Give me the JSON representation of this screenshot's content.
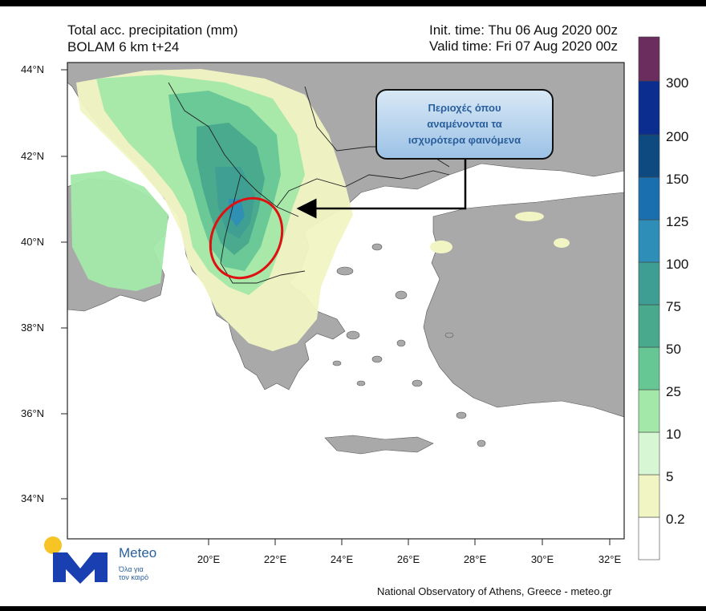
{
  "header": {
    "title_line1": "Total acc. precipitation (mm)",
    "title_line2": "BOLAM 6 km t+24",
    "init_time": "Init. time: Thu 06 Aug 2020 00z",
    "valid_time": "Valid time: Fri 07 Aug 2020 00z"
  },
  "map": {
    "lat_labels": [
      "44°N",
      "42°N",
      "40°N",
      "38°N",
      "36°N",
      "34°N"
    ],
    "lon_labels": [
      "20°E",
      "22°E",
      "24°E",
      "26°E",
      "28°E",
      "30°E",
      "32°E"
    ],
    "sea_color": "#ffffff",
    "land_color": "#a9a9a9",
    "annotation": {
      "text": "Περιοχές όπου\nαναμένονται τα\nισχυρότερα φαινόμενα",
      "ellipse_color": "#e01010",
      "arrow_color": "#000000"
    }
  },
  "legend": {
    "levels": [
      "0.2",
      "5",
      "10",
      "25",
      "50",
      "75",
      "100",
      "125",
      "150",
      "200",
      "300"
    ],
    "colors": [
      "#ffffff",
      "#f1f5c4",
      "#d7f7d4",
      "#a3e8a9",
      "#66c795",
      "#49a98d",
      "#3e9e94",
      "#2f8eb8",
      "#1a6fae",
      "#0e4a80",
      "#0a2d8f",
      "#6a2d5e"
    ]
  },
  "logo": {
    "name": "Meteo",
    "tagline1": "Όλα για",
    "tagline2": "τον καιρό"
  },
  "footer": {
    "credit": "National Observatory of Athens, Greece - meteo.gr"
  }
}
